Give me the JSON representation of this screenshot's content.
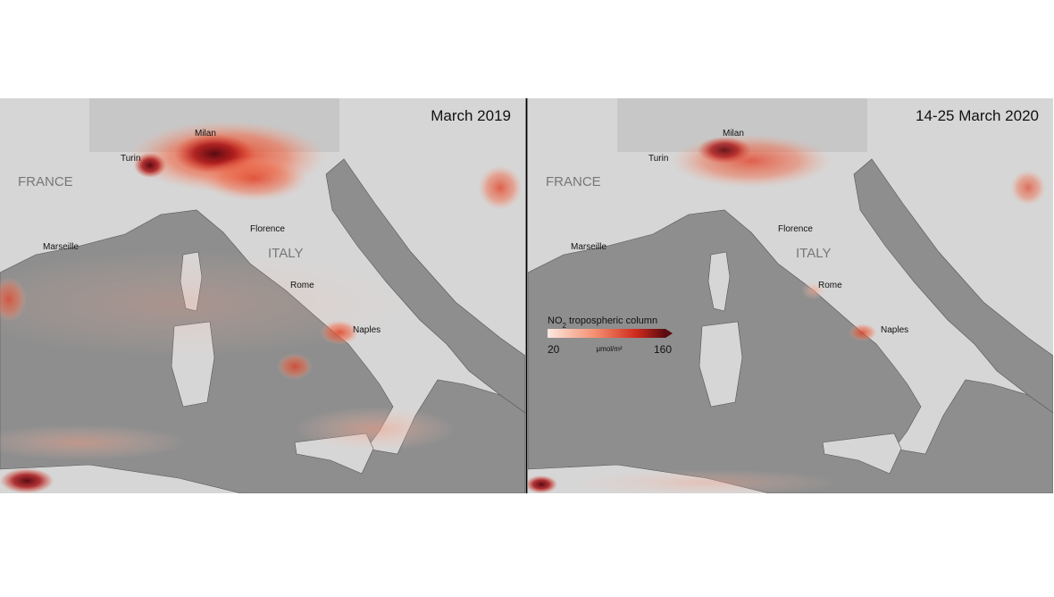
{
  "panels": [
    {
      "title": "March 2019",
      "labels": [
        "FRANCE",
        "Turin",
        "Milan",
        "Marseille",
        "Florence",
        "ITALY",
        "Rome",
        "Naples"
      ]
    },
    {
      "title": "14-25 March 2020",
      "labels": [
        "FRANCE",
        "Turin",
        "Milan",
        "Marseille",
        "Florence",
        "ITALY",
        "Rome",
        "Naples"
      ]
    }
  ],
  "legend": {
    "title_main": "NO",
    "title_sub": "2",
    "title_rest": " tropospheric column",
    "min": 20,
    "max": 160,
    "unit": "μmol/m²"
  }
}
